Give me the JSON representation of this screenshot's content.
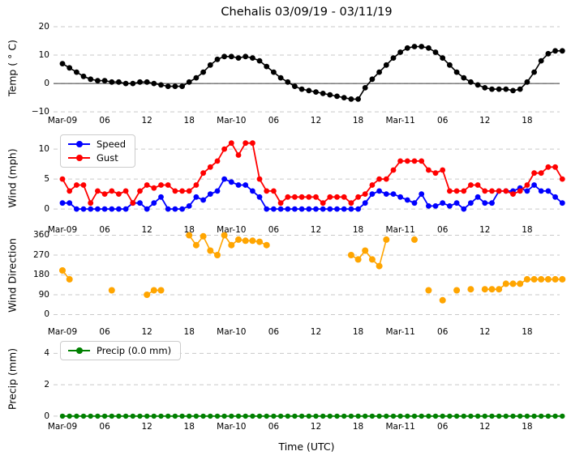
{
  "title": "Chehalis 03/09/19 - 03/11/19",
  "background": "#ffffff",
  "grid": {
    "color": "#c9c9c9",
    "style": "dashed"
  },
  "x_axis": {
    "label": "Time (UTC)",
    "tick_labels": [
      "Mar-09",
      "06",
      "12",
      "18",
      "Mar-10",
      "06",
      "12",
      "18",
      "Mar-11",
      "06",
      "12",
      "18"
    ],
    "tick_hours": [
      0,
      6,
      12,
      18,
      24,
      30,
      36,
      42,
      48,
      54,
      60,
      66
    ],
    "hours_total": 72
  },
  "chart_data": [
    {
      "type": "line",
      "panel": "temperature",
      "ylabel": "Temp ( ° C)",
      "yticks": [
        20,
        10,
        0,
        -10
      ],
      "ylim": [
        -11.1,
        22
      ],
      "zero_line": true,
      "legend": null,
      "series": [
        {
          "name": "Temp",
          "color": "#000000",
          "values": [
            7,
            5.5,
            4,
            2.5,
            1.5,
            1,
            1,
            0.5,
            0.5,
            0,
            0,
            0.5,
            0.5,
            0,
            -0.5,
            -1,
            -1,
            -1,
            0.5,
            2,
            4,
            6.5,
            8.5,
            9.5,
            9.5,
            9,
            9.5,
            9,
            8,
            6,
            4,
            2,
            0.5,
            -1,
            -2,
            -2.5,
            -3,
            -3.5,
            -4,
            -4.5,
            -5,
            -5.5,
            -5.5,
            -1.5,
            1.5,
            4,
            6.5,
            9,
            11,
            12.5,
            13,
            13,
            12.5,
            11,
            9,
            6.5,
            4,
            2,
            0.5,
            -0.5,
            -1.5,
            -2,
            -2,
            -2,
            -2.5,
            -2,
            0.5,
            4,
            8,
            10.5,
            11.5,
            11.5
          ]
        }
      ]
    },
    {
      "type": "line",
      "panel": "wind",
      "ylabel": "Wind (mph)",
      "yticks": [
        10,
        5,
        0
      ],
      "ylim": [
        -1.6,
        11.9
      ],
      "zero_line": false,
      "legend": {
        "position": "upper-left",
        "items": [
          "Speed",
          "Gust"
        ]
      },
      "series": [
        {
          "name": "Speed",
          "color": "#0000ff",
          "values": [
            1,
            1,
            0,
            0,
            0,
            0,
            0,
            0,
            0,
            0,
            1,
            1,
            0,
            1,
            2,
            0,
            0,
            0,
            0.5,
            2,
            1.5,
            2.5,
            3,
            5,
            4.5,
            4,
            4,
            3,
            2,
            0,
            0,
            0,
            0,
            0,
            0,
            0,
            0,
            0,
            0,
            0,
            0,
            0,
            0,
            1,
            2.5,
            3,
            2.5,
            2.5,
            2,
            1.5,
            1,
            2.5,
            0.5,
            0.5,
            1,
            0.5,
            1,
            0,
            1,
            2,
            1,
            1,
            3,
            3,
            3,
            3.5,
            3,
            4,
            3,
            3,
            2,
            1
          ]
        },
        {
          "name": "Gust",
          "color": "#ff0000",
          "values": [
            5,
            3,
            4,
            4,
            1,
            3,
            2.5,
            3,
            2.5,
            3,
            1,
            3,
            4,
            3.5,
            4,
            4,
            3,
            3,
            3,
            4,
            6,
            7,
            8,
            10,
            11,
            9,
            11,
            11,
            5,
            3,
            3,
            1,
            2,
            2,
            2,
            2,
            2,
            1,
            2,
            2,
            2,
            1,
            2,
            2.5,
            4,
            5,
            5,
            6.5,
            8,
            8,
            8,
            8,
            6.5,
            6,
            6.5,
            3,
            3,
            3,
            4,
            4,
            3,
            3,
            3,
            3,
            2.5,
            3,
            4,
            6,
            6,
            7,
            7,
            5
          ]
        }
      ]
    },
    {
      "type": "line",
      "panel": "wind-direction",
      "ylabel": "Wind Direction",
      "yticks": [
        360,
        270,
        180,
        90,
        0
      ],
      "ylim": [
        -12.9,
        369
      ],
      "zero_line": false,
      "legend": null,
      "series": [
        {
          "name": "Direction",
          "color": "#ffa500",
          "values": [
            200,
            160,
            null,
            null,
            null,
            null,
            null,
            110,
            null,
            null,
            null,
            null,
            90,
            110,
            110,
            null,
            null,
            null,
            360,
            315,
            355,
            290,
            270,
            360,
            315,
            340,
            335,
            335,
            330,
            315,
            null,
            null,
            null,
            null,
            null,
            null,
            null,
            null,
            null,
            null,
            null,
            270,
            250,
            290,
            250,
            220,
            340,
            null,
            null,
            null,
            340,
            null,
            110,
            null,
            65,
            null,
            110,
            null,
            115,
            null,
            115,
            115,
            115,
            140,
            140,
            140,
            160,
            160,
            160,
            160,
            160,
            160
          ]
        }
      ]
    },
    {
      "type": "line",
      "panel": "precipitation",
      "ylabel": "Precip (mm)",
      "yticks": [
        4,
        2,
        0
      ],
      "ylim": [
        -0.21,
        4.95
      ],
      "zero_line": false,
      "legend": {
        "position": "upper-left",
        "items": [
          "Precip (0.0 mm)"
        ]
      },
      "series": [
        {
          "name": "Precip",
          "color": "#008000",
          "values": [
            0,
            0,
            0,
            0,
            0,
            0,
            0,
            0,
            0,
            0,
            0,
            0,
            0,
            0,
            0,
            0,
            0,
            0,
            0,
            0,
            0,
            0,
            0,
            0,
            0,
            0,
            0,
            0,
            0,
            0,
            0,
            0,
            0,
            0,
            0,
            0,
            0,
            0,
            0,
            0,
            0,
            0,
            0,
            0,
            0,
            0,
            0,
            0,
            0,
            0,
            0,
            0,
            0,
            0,
            0,
            0,
            0,
            0,
            0,
            0,
            0,
            0,
            0,
            0,
            0,
            0,
            0,
            0,
            0,
            0,
            0,
            0
          ]
        }
      ]
    }
  ]
}
